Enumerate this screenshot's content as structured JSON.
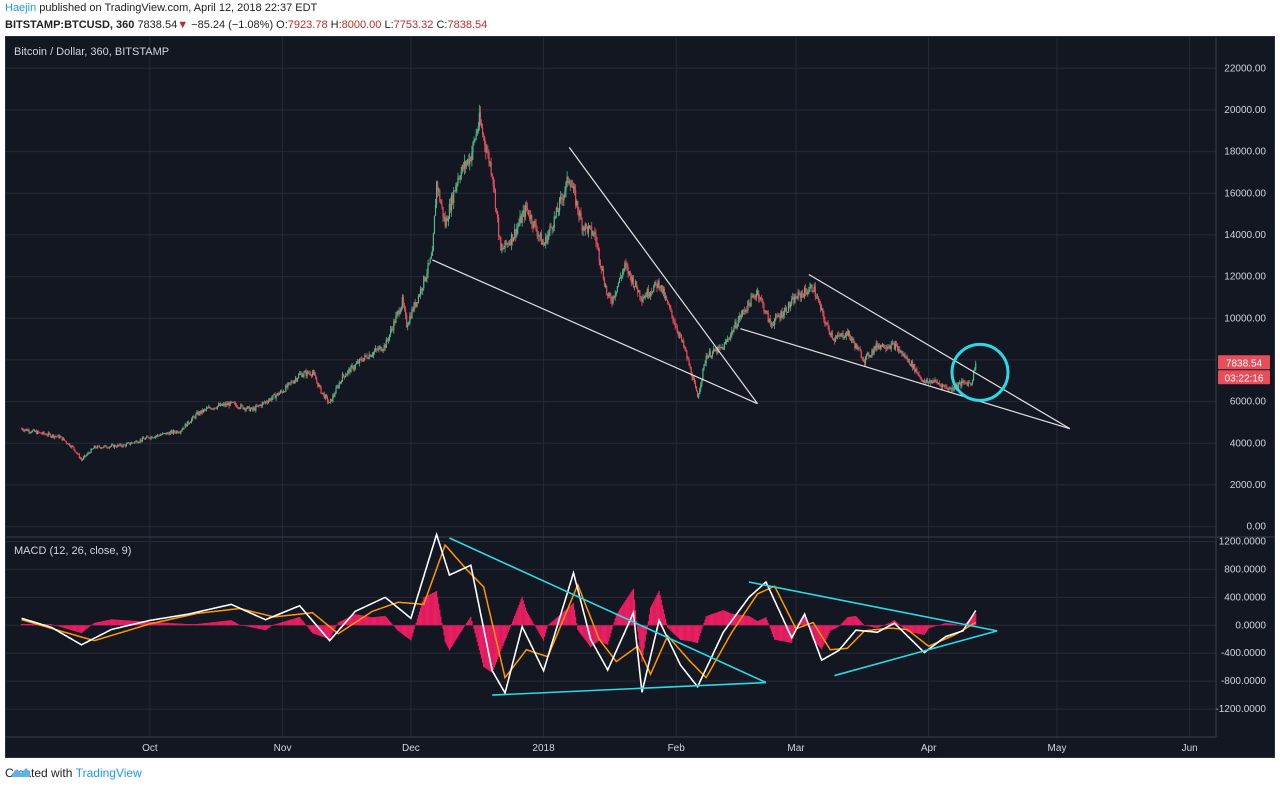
{
  "header": {
    "author": "Haejin",
    "published_text": "published on TradingView.com, April 12, 2018 22:37 EDT"
  },
  "quote": {
    "symbol": "BITSTAMP:BTCUSD, 360",
    "last": "7838.54",
    "arrow": "▼",
    "change": "−85.24 (−1.08%)",
    "open_label": "O:",
    "open": "7923.78",
    "high_label": "H:",
    "high": "8000.00",
    "low_label": "L:",
    "low": "7753.32",
    "close_label": "C:",
    "close": "7838.54"
  },
  "footer": {
    "created_with": "Created with",
    "brand": "TradingView"
  },
  "colors": {
    "background": "#131722",
    "grid": "#252a37",
    "candle_up": "#53b987",
    "candle_down": "#eb4d5c",
    "trendline_price": "#e0e0e0",
    "trendline_macd": "#2bd9e6",
    "macd_line": "#ffffff",
    "signal_line": "#ff9800",
    "histogram": "#e91e63",
    "price_label": "#e84d5a"
  },
  "chart_data": [
    {
      "type": "candlestick",
      "title": "Bitcoin / Dollar, 360, BITSTAMP",
      "ylim": [
        -500,
        23500
      ],
      "y_ticks": [
        "0.00",
        "2000.00",
        "4000.00",
        "6000.00",
        "8000.00",
        "10000.00",
        "12000.00",
        "14000.00",
        "16000.00",
        "18000.00",
        "20000.00",
        "22000.00"
      ],
      "x_tick_labels": [
        "Oct",
        "Nov",
        "Dec",
        "2018",
        "Feb",
        "Mar",
        "Apr",
        "May",
        "Jun"
      ],
      "last_price_label": "7838.54",
      "countdown_label": "03:22:16",
      "price_path": [
        [
          "2017-09-01",
          4700
        ],
        [
          "2017-09-05",
          4500
        ],
        [
          "2017-09-10",
          4300
        ],
        [
          "2017-09-13",
          3800
        ],
        [
          "2017-09-15",
          3200
        ],
        [
          "2017-09-18",
          3800
        ],
        [
          "2017-09-25",
          3900
        ],
        [
          "2017-10-01",
          4300
        ],
        [
          "2017-10-08",
          4600
        ],
        [
          "2017-10-12",
          5400
        ],
        [
          "2017-10-15",
          5700
        ],
        [
          "2017-10-20",
          5900
        ],
        [
          "2017-10-25",
          5600
        ],
        [
          "2017-11-01",
          6500
        ],
        [
          "2017-11-05",
          7300
        ],
        [
          "2017-11-08",
          7400
        ],
        [
          "2017-11-10",
          6500
        ],
        [
          "2017-11-12",
          5900
        ],
        [
          "2017-11-15",
          7200
        ],
        [
          "2017-11-20",
          8100
        ],
        [
          "2017-11-25",
          8700
        ],
        [
          "2017-11-29",
          10800
        ],
        [
          "2017-11-30",
          9700
        ],
        [
          "2017-12-03",
          11200
        ],
        [
          "2017-12-06",
          13000
        ],
        [
          "2017-12-07",
          16500
        ],
        [
          "2017-12-09",
          14500
        ],
        [
          "2017-12-12",
          16800
        ],
        [
          "2017-12-15",
          17800
        ],
        [
          "2017-12-17",
          19500
        ],
        [
          "2017-12-20",
          17000
        ],
        [
          "2017-12-22",
          13200
        ],
        [
          "2017-12-25",
          14000
        ],
        [
          "2017-12-28",
          15300
        ],
        [
          "2018-01-01",
          13500
        ],
        [
          "2018-01-04",
          15000
        ],
        [
          "2018-01-07",
          16800
        ],
        [
          "2018-01-10",
          14500
        ],
        [
          "2018-01-13",
          14000
        ],
        [
          "2018-01-16",
          11000
        ],
        [
          "2018-01-17",
          10900
        ],
        [
          "2018-01-20",
          12500
        ],
        [
          "2018-01-24",
          11000
        ],
        [
          "2018-01-28",
          11700
        ],
        [
          "2018-02-01",
          9600
        ],
        [
          "2018-02-03",
          8500
        ],
        [
          "2018-02-05",
          7000
        ],
        [
          "2018-02-06",
          6200
        ],
        [
          "2018-02-08",
          8200
        ],
        [
          "2018-02-12",
          8600
        ],
        [
          "2018-02-16",
          10100
        ],
        [
          "2018-02-20",
          11300
        ],
        [
          "2018-02-23",
          9700
        ],
        [
          "2018-02-27",
          10500
        ],
        [
          "2018-03-01",
          11000
        ],
        [
          "2018-03-05",
          11500
        ],
        [
          "2018-03-08",
          9700
        ],
        [
          "2018-03-10",
          9000
        ],
        [
          "2018-03-13",
          9300
        ],
        [
          "2018-03-17",
          8000
        ],
        [
          "2018-03-20",
          8700
        ],
        [
          "2018-03-24",
          8700
        ],
        [
          "2018-03-28",
          7800
        ],
        [
          "2018-03-31",
          6900
        ],
        [
          "2018-04-02",
          7000
        ],
        [
          "2018-04-06",
          6600
        ],
        [
          "2018-04-09",
          6900
        ],
        [
          "2018-04-11",
          6900
        ],
        [
          "2018-04-12",
          7900
        ]
      ],
      "trendlines": [
        {
          "from": [
            "2017-12-06",
            12800
          ],
          "to": [
            "2018-02-20",
            5900
          ]
        },
        {
          "from": [
            "2018-01-07",
            18200
          ],
          "to": [
            "2018-02-20",
            5900
          ]
        },
        {
          "from": [
            "2018-02-16",
            9500
          ],
          "to": [
            "2018-05-04",
            4700
          ]
        },
        {
          "from": [
            "2018-03-04",
            12100
          ],
          "to": [
            "2018-05-04",
            4700
          ]
        }
      ],
      "annotation": {
        "type": "circle",
        "at": [
          "2018-04-13",
          7400
        ],
        "color": "#2bd9e6"
      }
    },
    {
      "type": "line",
      "title": "MACD (12, 26, close, 9)",
      "ylim": [
        -1600,
        1250
      ],
      "y_ticks": [
        "-1200.0000",
        "-800.0000",
        "-400.0000",
        "0.0000",
        "400.0000",
        "800.0000",
        "1200.0000"
      ],
      "series": [
        {
          "name": "MACD",
          "values": [
            [
              "2017-09-01",
              100
            ],
            [
              "2017-09-08",
              -30
            ],
            [
              "2017-09-15",
              -280
            ],
            [
              "2017-09-22",
              -60
            ],
            [
              "2017-10-01",
              70
            ],
            [
              "2017-10-10",
              160
            ],
            [
              "2017-10-20",
              300
            ],
            [
              "2017-10-28",
              80
            ],
            [
              "2017-11-05",
              280
            ],
            [
              "2017-11-12",
              -220
            ],
            [
              "2017-11-18",
              200
            ],
            [
              "2017-11-25",
              400
            ],
            [
              "2017-12-01",
              100
            ],
            [
              "2017-12-07",
              1300
            ],
            [
              "2017-12-10",
              720
            ],
            [
              "2017-12-15",
              860
            ],
            [
              "2017-12-20",
              -650
            ],
            [
              "2017-12-23",
              -970
            ],
            [
              "2017-12-27",
              -20
            ],
            [
              "2018-01-01",
              -650
            ],
            [
              "2018-01-08",
              750
            ],
            [
              "2018-01-12",
              -200
            ],
            [
              "2018-01-16",
              -640
            ],
            [
              "2018-01-22",
              180
            ],
            [
              "2018-01-24",
              -960
            ],
            [
              "2018-01-28",
              70
            ],
            [
              "2018-02-02",
              -570
            ],
            [
              "2018-02-06",
              -880
            ],
            [
              "2018-02-12",
              -100
            ],
            [
              "2018-02-18",
              400
            ],
            [
              "2018-02-22",
              620
            ],
            [
              "2018-02-28",
              -180
            ],
            [
              "2018-03-03",
              160
            ],
            [
              "2018-03-07",
              -500
            ],
            [
              "2018-03-11",
              -360
            ],
            [
              "2018-03-15",
              -70
            ],
            [
              "2018-03-20",
              -100
            ],
            [
              "2018-03-24",
              30
            ],
            [
              "2018-03-31",
              -390
            ],
            [
              "2018-04-05",
              -160
            ],
            [
              "2018-04-09",
              -80
            ],
            [
              "2018-04-12",
              210
            ]
          ]
        },
        {
          "name": "Signal",
          "values": [
            [
              "2017-09-01",
              80
            ],
            [
              "2017-09-10",
              -80
            ],
            [
              "2017-09-18",
              -220
            ],
            [
              "2017-10-01",
              20
            ],
            [
              "2017-10-12",
              170
            ],
            [
              "2017-10-22",
              240
            ],
            [
              "2017-10-30",
              120
            ],
            [
              "2017-11-08",
              180
            ],
            [
              "2017-11-14",
              -120
            ],
            [
              "2017-11-22",
              200
            ],
            [
              "2017-11-28",
              330
            ],
            [
              "2017-12-04",
              300
            ],
            [
              "2017-12-09",
              1150
            ],
            [
              "2017-12-14",
              800
            ],
            [
              "2017-12-18",
              550
            ],
            [
              "2017-12-23",
              -750
            ],
            [
              "2017-12-28",
              -350
            ],
            [
              "2018-01-02",
              -450
            ],
            [
              "2018-01-09",
              580
            ],
            [
              "2018-01-14",
              -200
            ],
            [
              "2018-01-18",
              -520
            ],
            [
              "2018-01-23",
              -300
            ],
            [
              "2018-01-26",
              -700
            ],
            [
              "2018-01-30",
              -150
            ],
            [
              "2018-02-04",
              -500
            ],
            [
              "2018-02-08",
              -750
            ],
            [
              "2018-02-14",
              -100
            ],
            [
              "2018-02-20",
              450
            ],
            [
              "2018-02-24",
              560
            ],
            [
              "2018-03-01",
              -50
            ],
            [
              "2018-03-05",
              40
            ],
            [
              "2018-03-09",
              -350
            ],
            [
              "2018-03-13",
              -330
            ],
            [
              "2018-03-17",
              -80
            ],
            [
              "2018-03-23",
              -40
            ],
            [
              "2018-03-27",
              -60
            ],
            [
              "2018-04-01",
              -300
            ],
            [
              "2018-04-07",
              -140
            ],
            [
              "2018-04-12",
              40
            ]
          ]
        }
      ],
      "trendlines": [
        {
          "from": [
            "2017-12-10",
            1250
          ],
          "to": [
            "2018-02-22",
            -820
          ]
        },
        {
          "from": [
            "2017-12-20",
            -1000
          ],
          "to": [
            "2018-02-22",
            -820
          ]
        },
        {
          "from": [
            "2018-02-18",
            620
          ],
          "to": [
            "2018-04-17",
            -80
          ]
        },
        {
          "from": [
            "2018-03-10",
            -720
          ],
          "to": [
            "2018-04-17",
            -80
          ]
        }
      ]
    }
  ]
}
